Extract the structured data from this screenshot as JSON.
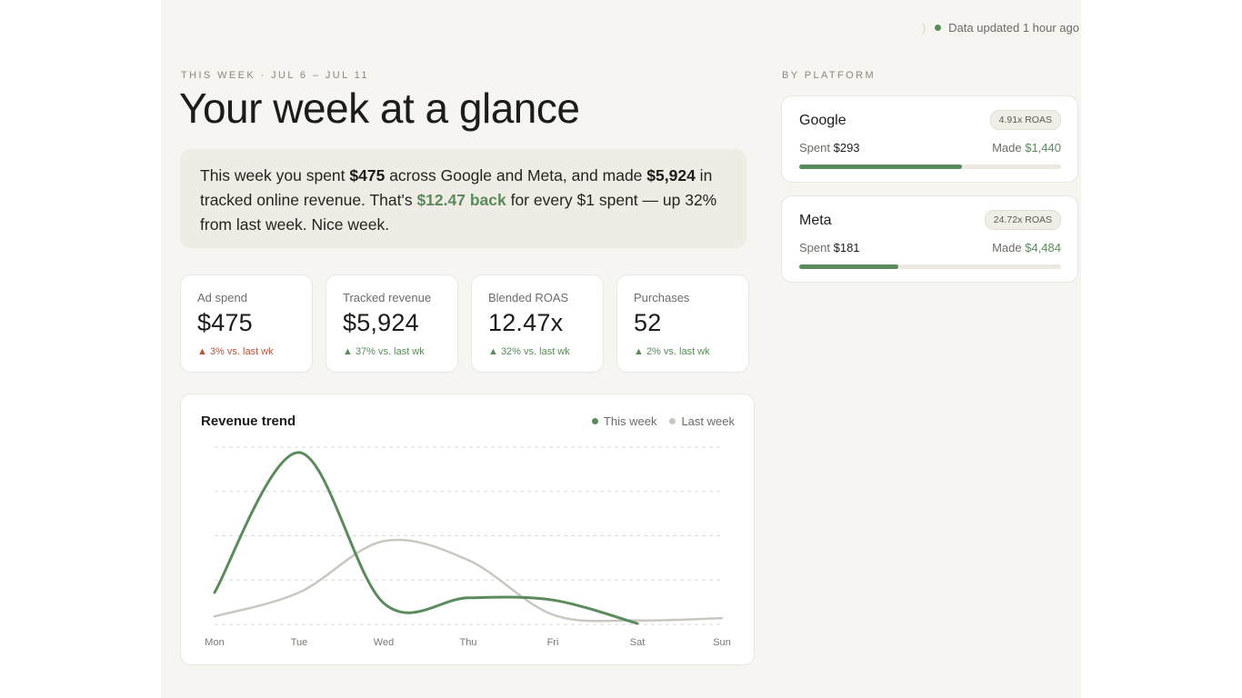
{
  "status": {
    "text": "Data updated 1 hour ago"
  },
  "header": {
    "eyebrow": "THIS WEEK · JUL 6 – JUL 11",
    "title": "Your week at a glance"
  },
  "summary": {
    "p1": "This week you spent ",
    "spend": "$475",
    "p2": " across Google and Meta, and made ",
    "revenue": "$5,924",
    "p3": " in tracked online revenue. That's ",
    "back": "$12.47 back",
    "p4": " for every $1 spent — up 32% from last week. Nice week."
  },
  "kpis": [
    {
      "label": "Ad spend",
      "value": "$475",
      "change": "▲ 3% vs. last wk",
      "tone": "warn"
    },
    {
      "label": "Tracked revenue",
      "value": "$5,924",
      "change": "▲ 37% vs. last wk",
      "tone": "up"
    },
    {
      "label": "Blended ROAS",
      "value": "12.47x",
      "change": "▲ 32% vs. last wk",
      "tone": "up"
    },
    {
      "label": "Purchases",
      "value": "52",
      "change": "▲ 2% vs. last wk",
      "tone": "up"
    }
  ],
  "revenue_chart": {
    "title": "Revenue trend",
    "legend": {
      "this_week": "This week",
      "last_week": "Last week"
    },
    "colors": {
      "this_week": "#5b8a5c",
      "last_week": "#c9c7bf",
      "grid": "#dcdad4"
    }
  },
  "chart_data": {
    "type": "line",
    "title": "Revenue trend",
    "categories": [
      "Mon",
      "Tue",
      "Wed",
      "Thu",
      "Fri",
      "Sat",
      "Sun"
    ],
    "ylim": [
      0,
      4
    ],
    "grid": true,
    "legend": "top-right",
    "series": [
      {
        "name": "This week",
        "values": [
          0.72,
          3.88,
          0.48,
          0.6,
          0.55,
          0.02,
          null
        ]
      },
      {
        "name": "Last week",
        "values": [
          0.18,
          0.72,
          1.88,
          1.45,
          0.22,
          0.09,
          0.14
        ]
      }
    ]
  },
  "platforms": {
    "eyebrow": "BY PLATFORM",
    "items": [
      {
        "name": "Google",
        "badge": "4.91x ROAS",
        "spent_label": "Spent",
        "spent": "$293",
        "made_label": "Made",
        "made": "$1,440",
        "share": 0.62
      },
      {
        "name": "Meta",
        "badge": "24.72x ROAS",
        "spent_label": "Spent",
        "spent": "$181",
        "made_label": "Made",
        "made": "$4,484",
        "share": 0.38
      }
    ]
  }
}
